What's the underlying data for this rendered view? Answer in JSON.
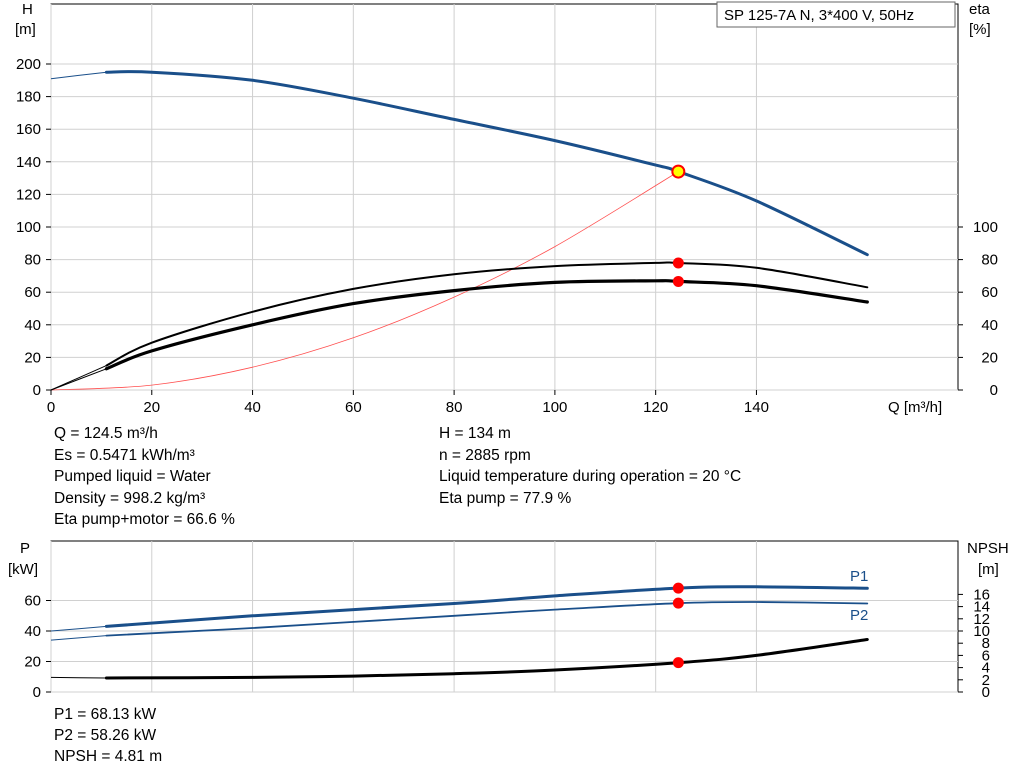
{
  "header": {
    "pump_title": "SP 125-7A N, 3*400 V, 50Hz"
  },
  "colors": {
    "head_curve": "#1a4f8a",
    "efficiency_curves": "#000000",
    "system_curve": "#ff5050",
    "duty_point": "#ff0000",
    "duty_point_head_fill": "#ffff00",
    "gridlines": "#d0d0d0"
  },
  "upper_chart": {
    "left_axis": {
      "title": "H",
      "unit": "[m]"
    },
    "right_axis": {
      "title": "eta",
      "unit": "[%]"
    },
    "x_axis": {
      "title": "Q [m³/h]"
    }
  },
  "info_left": [
    "Q = 124.5 m³/h",
    "Es = 0.5471 kWh/m³",
    "Pumped liquid = Water",
    "Density = 998.2 kg/m³",
    "Eta pump+motor = 66.6 %"
  ],
  "info_right": [
    "H = 134 m",
    "n = 2885 rpm",
    "Liquid temperature during operation = 20 °C",
    "Eta pump = 77.9 %"
  ],
  "lower_chart": {
    "left_axis": {
      "title": "P",
      "unit": "[kW]"
    },
    "right_axis": {
      "title": "NPSH",
      "unit": "[m]"
    },
    "curve_labels": {
      "p1": "P1",
      "p2": "P2"
    }
  },
  "info_bottom": [
    "P1 = 68.13 kW",
    "P2 = 58.26 kW",
    "NPSH = 4.81 m"
  ],
  "chart_data": [
    {
      "type": "line",
      "title": "",
      "xlabel": "Q [m³/h]",
      "ylabel": "H [m]",
      "y2label": "eta [%]",
      "xlim": [
        0,
        180
      ],
      "x_ticks": [
        0,
        20,
        40,
        60,
        80,
        100,
        120,
        140
      ],
      "ylim": [
        0,
        200
      ],
      "y_ticks": [
        0,
        20,
        40,
        60,
        80,
        100,
        120,
        140,
        160,
        180,
        200
      ],
      "y2lim": [
        0,
        200
      ],
      "y2_ticks": [
        0,
        20,
        40,
        60,
        80,
        100
      ],
      "grid": true,
      "series": [
        {
          "key": "H",
          "axis": "left",
          "x": [
            0,
            11,
            20,
            40,
            60,
            80,
            100,
            120,
            124.5,
            140,
            162
          ],
          "values": [
            191,
            195,
            195,
            190,
            179,
            166,
            153,
            138,
            134,
            116,
            83
          ]
        },
        {
          "key": "eta_pump",
          "axis": "right",
          "x": [
            0,
            11,
            20,
            40,
            60,
            80,
            100,
            120,
            124.5,
            140,
            162
          ],
          "values": [
            0,
            15,
            29,
            48,
            62,
            71,
            76,
            78,
            77.9,
            75,
            63
          ]
        },
        {
          "key": "eta_total",
          "axis": "right",
          "x": [
            0,
            11,
            20,
            40,
            60,
            80,
            100,
            120,
            124.5,
            140,
            162
          ],
          "values": [
            0,
            13,
            24,
            40,
            53,
            61,
            66,
            67,
            66.6,
            64,
            54
          ]
        },
        {
          "key": "system_curve",
          "axis": "left",
          "x": [
            0,
            20,
            40,
            60,
            80,
            100,
            124.5
          ],
          "values": [
            0,
            3,
            14,
            32,
            57,
            88,
            134
          ]
        }
      ],
      "duty_point": {
        "Q": 124.5,
        "H": 134,
        "eta_pump": 77.9,
        "eta_total": 66.6
      }
    },
    {
      "type": "line",
      "title": "",
      "ylabel": "P [kW]",
      "y2label": "NPSH [m]",
      "xlim": [
        0,
        180
      ],
      "ylim": [
        0,
        80
      ],
      "y_ticks": [
        0,
        20,
        40,
        60
      ],
      "y2lim": [
        0,
        20
      ],
      "y2_ticks": [
        0,
        2,
        4,
        6,
        8,
        10,
        12,
        14,
        16
      ],
      "grid": true,
      "series": [
        {
          "key": "P1",
          "name": "P1",
          "axis": "left",
          "x": [
            0,
            11,
            40,
            80,
            100,
            124.5,
            140,
            162
          ],
          "values": [
            40,
            43,
            50,
            58,
            63,
            68.13,
            69,
            68
          ]
        },
        {
          "key": "P2",
          "name": "P2",
          "axis": "left",
          "x": [
            0,
            11,
            40,
            80,
            100,
            124.5,
            140,
            162
          ],
          "values": [
            34,
            37,
            42,
            50,
            54,
            58.26,
            59,
            58
          ]
        },
        {
          "key": "NPSH",
          "axis": "right",
          "x": [
            0,
            11,
            40,
            60,
            80,
            100,
            124.5,
            140,
            162
          ],
          "values": [
            2.4,
            2.3,
            2.4,
            2.6,
            3.0,
            3.6,
            4.81,
            6.0,
            8.6
          ]
        }
      ],
      "duty_point": {
        "Q": 124.5,
        "P1": 68.13,
        "P2": 58.26,
        "NPSH": 4.81
      }
    }
  ]
}
